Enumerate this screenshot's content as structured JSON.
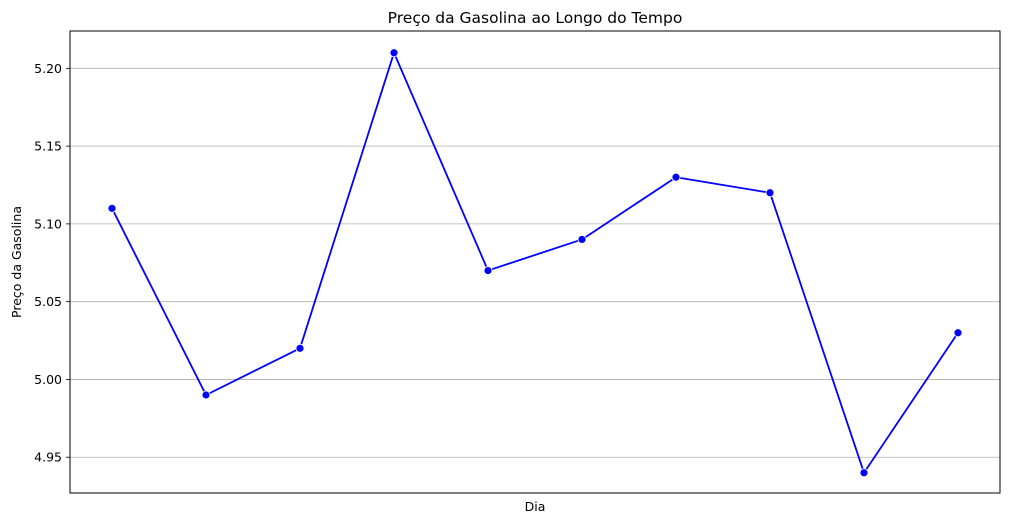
{
  "chart_data": {
    "type": "line",
    "title": "Preço da Gasolina ao Longo do Tempo",
    "xlabel": "Dia",
    "ylabel": "Preço da Gasolina",
    "x_tick_labels_shown": false,
    "ylim": [
      4.927,
      5.224
    ],
    "yticks": [
      4.95,
      5.0,
      5.05,
      5.1,
      5.15,
      5.2
    ],
    "ytick_labels": [
      "4.95",
      "5.00",
      "5.05",
      "5.10",
      "5.15",
      "5.20"
    ],
    "grid": "horizontal",
    "series": [
      {
        "color": "#0000ff",
        "marker": "circle",
        "values": [
          5.11,
          4.99,
          5.02,
          5.21,
          5.07,
          5.09,
          5.13,
          5.12,
          4.94,
          5.03
        ]
      }
    ]
  }
}
